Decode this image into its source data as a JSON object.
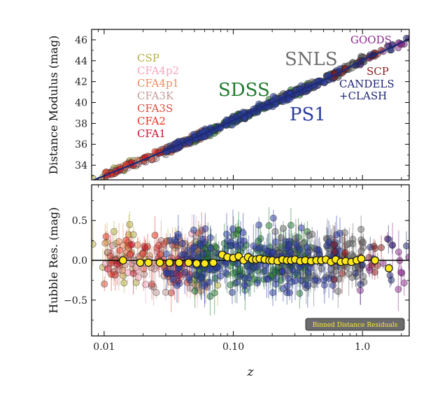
{
  "chart_data": [
    {
      "type": "scatter",
      "panel": "top",
      "xlabel": "z",
      "ylabel": "Distance Modulus (mag)",
      "xscale": "log",
      "xlim": [
        0.008,
        2.3
      ],
      "ylim": [
        32.6,
        47.0
      ],
      "yticks": [
        34,
        36,
        38,
        40,
        42,
        44,
        46
      ],
      "ytick_labels": [
        "34",
        "36",
        "38",
        "40",
        "42",
        "44",
        "46"
      ],
      "xticks": [
        0.01,
        0.1,
        1.0
      ],
      "xtick_labels": [
        "0.01",
        "0.10",
        "1.0"
      ],
      "model_curve": {
        "x": [
          0.008,
          0.02,
          0.05,
          0.1,
          0.2,
          0.4,
          0.7,
          1.0,
          1.5,
          2.3
        ],
        "y": [
          32.5,
          34.5,
          36.6,
          38.3,
          40.0,
          41.6,
          43.0,
          44.1,
          45.0,
          46.1
        ]
      },
      "surveys": [
        {
          "name": "CSP",
          "color": "#b5b040",
          "zrange": [
            0.008,
            0.08
          ],
          "label_position": "upper-left"
        },
        {
          "name": "CFA4p2",
          "color": "#f4a6c0",
          "zrange": [
            0.01,
            0.07
          ],
          "label_position": "upper-left"
        },
        {
          "name": "CFA4p1",
          "color": "#f08a5d",
          "zrange": [
            0.01,
            0.07
          ],
          "label_position": "upper-left"
        },
        {
          "name": "CFA3K",
          "color": "#c49a9a",
          "zrange": [
            0.01,
            0.06
          ],
          "label_position": "upper-left"
        },
        {
          "name": "CFA3S",
          "color": "#d94c3d",
          "zrange": [
            0.01,
            0.06
          ],
          "label_position": "upper-left"
        },
        {
          "name": "CFA2",
          "color": "#e8321e",
          "zrange": [
            0.01,
            0.05
          ],
          "label_position": "upper-left"
        },
        {
          "name": "CFA1",
          "color": "#c8102e",
          "zrange": [
            0.01,
            0.05
          ],
          "label_position": "upper-left"
        },
        {
          "name": "SDSS",
          "color": "#1f7a2e",
          "zrange": [
            0.05,
            0.4
          ],
          "label_position": "center"
        },
        {
          "name": "SNLS",
          "color": "#6f6f6f",
          "zrange": [
            0.2,
            1.05
          ],
          "label_position": "upper-center"
        },
        {
          "name": "PS1",
          "color": "#2a3aa0",
          "zrange": [
            0.03,
            0.7
          ],
          "label_position": "center-right"
        },
        {
          "name": "GOODS",
          "color": "#8e2a8e",
          "zrange": [
            0.9,
            2.3
          ],
          "label_position": "top-right"
        },
        {
          "name": "SCP",
          "color": "#8b1a1a",
          "zrange": [
            0.6,
            1.4
          ],
          "label_position": "upper-right"
        },
        {
          "name": "CANDELS\n+CLASH",
          "color": "#1c2370",
          "zrange": [
            0.8,
            2.3
          ],
          "label_position": "right"
        }
      ]
    },
    {
      "type": "scatter",
      "panel": "bottom",
      "xlabel": "z",
      "ylabel": "Hubble Res. (mag)",
      "xscale": "log",
      "xlim": [
        0.008,
        2.3
      ],
      "ylim": [
        -0.95,
        0.95
      ],
      "yticks": [
        0.5,
        0.0,
        -0.5
      ],
      "ytick_labels": [
        "0.5",
        "0.0",
        "−0.5"
      ],
      "xticks": [
        0.01,
        0.1,
        1.0
      ],
      "xtick_labels": [
        "0.01",
        "0.10",
        "1.0"
      ],
      "legend": {
        "label": "Binned Distance Residuals",
        "position": "lower-right"
      },
      "binned_residuals": {
        "x": [
          0.014,
          0.019,
          0.022,
          0.027,
          0.032,
          0.038,
          0.045,
          0.052,
          0.06,
          0.07,
          0.082,
          0.09,
          0.1,
          0.11,
          0.12,
          0.13,
          0.14,
          0.15,
          0.16,
          0.175,
          0.19,
          0.2,
          0.22,
          0.24,
          0.26,
          0.28,
          0.3,
          0.33,
          0.36,
          0.4,
          0.44,
          0.48,
          0.52,
          0.57,
          0.62,
          0.68,
          0.74,
          0.82,
          0.9,
          0.98,
          1.25,
          1.6
        ],
        "y": [
          0.0,
          -0.03,
          -0.03,
          -0.03,
          -0.03,
          -0.03,
          -0.03,
          -0.04,
          -0.04,
          -0.03,
          0.07,
          0.04,
          0.03,
          0.05,
          0.0,
          0.04,
          0.01,
          0.01,
          0.02,
          0.01,
          0.0,
          0.0,
          -0.01,
          0.01,
          0.0,
          0.0,
          0.01,
          -0.01,
          0.0,
          -0.01,
          0.0,
          0.0,
          0.01,
          -0.02,
          0.01,
          -0.02,
          -0.01,
          -0.02,
          0.0,
          0.02,
          0.0,
          -0.1
        ]
      }
    }
  ]
}
